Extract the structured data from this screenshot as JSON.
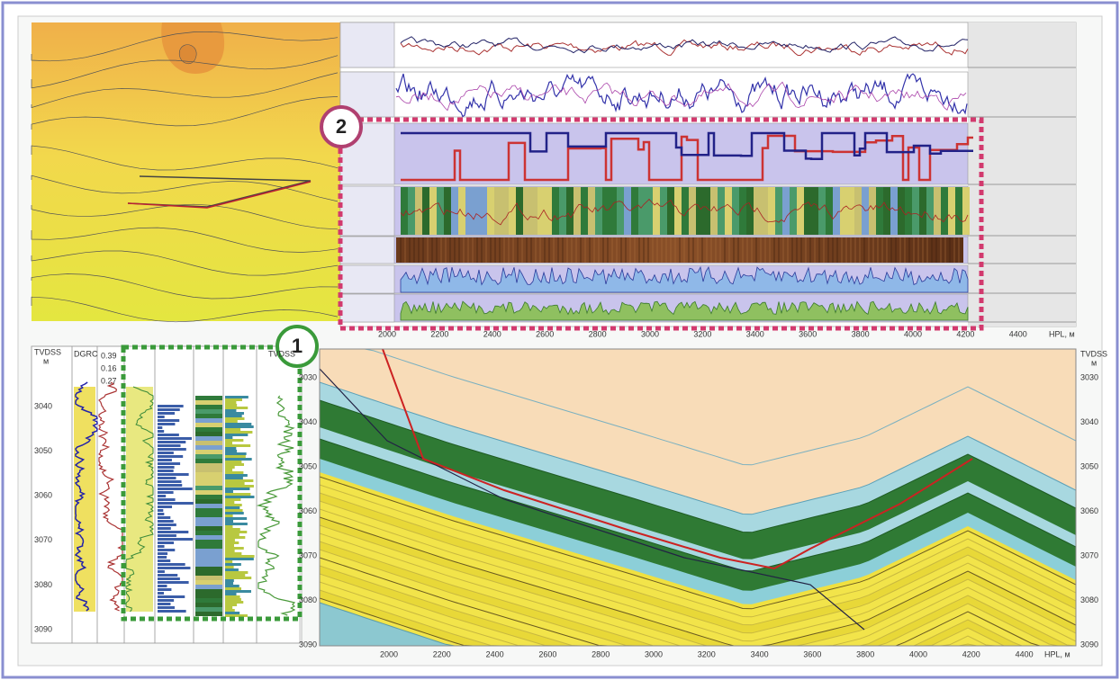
{
  "callouts": [
    "1",
    "2"
  ],
  "top_panel": {
    "x_ticks": [
      2000,
      2200,
      2400,
      2600,
      2800,
      3000,
      3200,
      3400,
      3600,
      3800,
      4000,
      4200,
      4400
    ],
    "x_unit": "HPL, м"
  },
  "section": {
    "x_ticks": [
      2000,
      2200,
      2400,
      2600,
      2800,
      3000,
      3200,
      3400,
      3600,
      3800,
      4000,
      4200,
      4400
    ],
    "x_unit": "HPL, м",
    "depth_label": "TVDSS",
    "depth_unit": "м",
    "depth_ticks": [
      3030,
      3040,
      3050,
      3060,
      3070,
      3080,
      3090
    ]
  },
  "log_panel": {
    "depth_label": "TVDSS",
    "depth_unit": "м",
    "track_header": "DGRC",
    "header_values": [
      "0.39",
      "0.16",
      "0.27"
    ],
    "depth_ticks": [
      3040,
      3050,
      3060,
      3070,
      3080,
      3090
    ]
  }
}
